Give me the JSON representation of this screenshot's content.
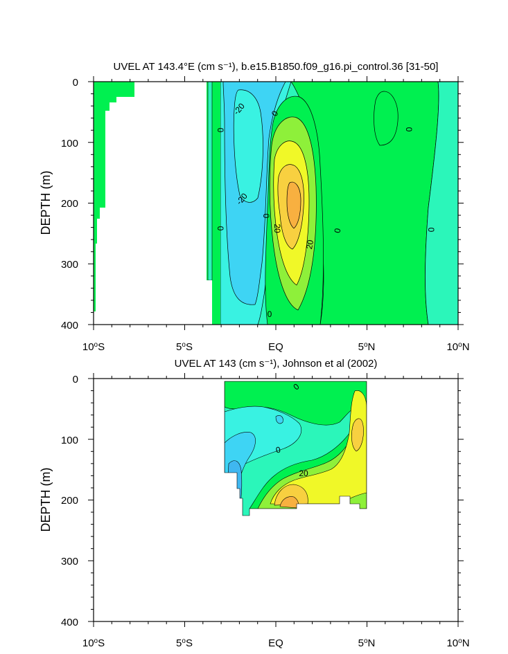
{
  "chart_data": [
    {
      "type": "contour",
      "title": "UVEL AT 143.4°E (cm s⁻¹), b.e15.B1850.f09_g16.pi_control.36 [31-50]",
      "ylabel": "DEPTH (m)",
      "xlabel": "",
      "x_ticks": [
        "10°S",
        "5°S",
        "EQ",
        "5°N",
        "10°N"
      ],
      "y_ticks": [
        "0",
        "100",
        "200",
        "300",
        "400"
      ],
      "xlim": [
        -10,
        10
      ],
      "ylim": [
        0,
        400
      ],
      "contour_labels": [
        "-20",
        "0",
        "0",
        "-20",
        "0",
        "20",
        "20",
        "0",
        "0",
        "0",
        "0",
        "0"
      ]
    },
    {
      "type": "contour",
      "title": "UVEL AT 143 (cm s⁻¹), Johnson et al (2002)",
      "ylabel": "DEPTH (m)",
      "xlabel": "",
      "x_ticks": [
        "10°S",
        "5°S",
        "EQ",
        "5°N",
        "10°N"
      ],
      "y_ticks": [
        "0",
        "100",
        "200",
        "300",
        "400"
      ],
      "xlim": [
        -10,
        10
      ],
      "ylim": [
        0,
        400
      ],
      "contour_labels": [
        "0",
        "0",
        "20"
      ]
    }
  ],
  "colors": {
    "c_neg30": "#3fb7f0",
    "c_neg20": "#3ed4f4",
    "c_neg10": "#39f2e2",
    "c_0": "#2bf6ba",
    "c_10": "#00f050",
    "c_20": "#8ef03a",
    "c_30": "#f0f828",
    "c_40": "#f8d040",
    "c_50": "#f8b040"
  }
}
